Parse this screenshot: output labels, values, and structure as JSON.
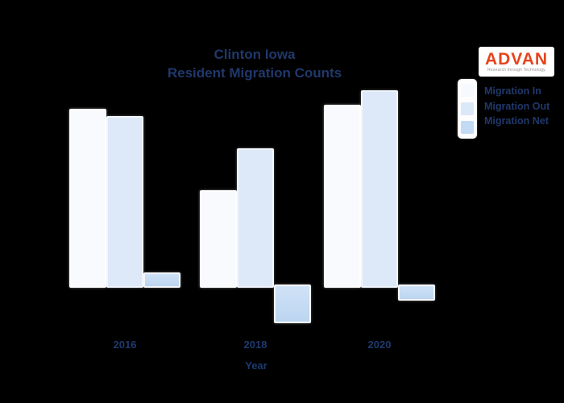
{
  "header": {
    "title_line1": "Clinton Iowa",
    "title_line2": "Resident Migration Counts",
    "title_color": "#20386b"
  },
  "logo": {
    "brand": "ADVAN",
    "tagline": "Research through Technology",
    "brand_color": "#e8431c"
  },
  "legend": {
    "items": [
      {
        "label": "Migration In",
        "color": "#f6f9fd"
      },
      {
        "label": "Migration Out",
        "color": "#dbe8f8"
      },
      {
        "label": "Migration Net",
        "color": "#c2daf3"
      }
    ]
  },
  "xaxis": {
    "label": "Year",
    "ticks": [
      "2016",
      "2018",
      "2020"
    ]
  },
  "chart_data": {
    "type": "bar",
    "title": "Clinton Iowa Resident Migration Counts",
    "categories": [
      "2016",
      "2018",
      "2020"
    ],
    "series": [
      {
        "name": "Migration In",
        "values": [
          222,
          121,
          227
        ],
        "color": "#f8fafd"
      },
      {
        "name": "Migration Out",
        "values": [
          213,
          173,
          245
        ],
        "color": "#dde9f8"
      },
      {
        "name": "Migration Net",
        "values": [
          19,
          -44,
          -16
        ],
        "color": "#c2daf3"
      }
    ],
    "xlabel": "Year",
    "ylabel": "",
    "ylim": [
      -60,
      250
    ],
    "grid": false,
    "legend_position": "upper right",
    "value_note": "no y-axis tick labels visible; values estimated in relative units from bar heights"
  }
}
